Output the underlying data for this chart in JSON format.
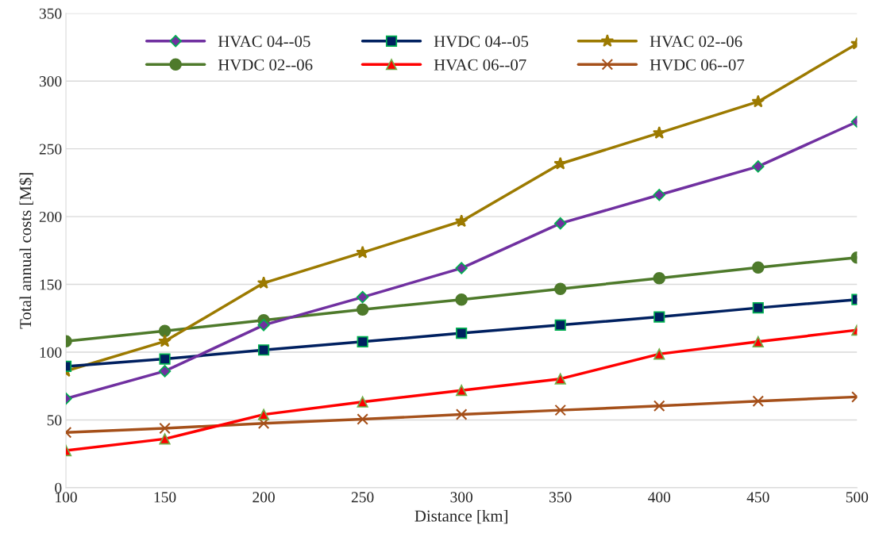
{
  "chart_data": {
    "type": "line",
    "xlabel": "Distance [km]",
    "ylabel": "Total annual costs [M$]",
    "x": [
      100,
      150,
      200,
      250,
      300,
      350,
      400,
      450,
      500
    ],
    "xlim": [
      100,
      500
    ],
    "xticks": [
      100,
      150,
      200,
      250,
      300,
      350,
      400,
      450,
      500
    ],
    "ylim": [
      0,
      350
    ],
    "yticks": [
      0,
      50,
      100,
      150,
      200,
      250,
      300,
      350
    ],
    "grid": "y",
    "legend": "top",
    "line_style": "solid",
    "series": [
      {
        "name": "HVAC 04--05",
        "color": "#7030a0",
        "marker": "diamond",
        "values": [
          65.7,
          86,
          120,
          140.6,
          162,
          195,
          216,
          237,
          270
        ]
      },
      {
        "name": "HVDC 04--05",
        "color": "#002060",
        "marker": "square",
        "values": [
          89.5,
          95,
          101.6,
          107.7,
          114,
          120,
          126,
          132.7,
          138.8
        ]
      },
      {
        "name": "HVAC 02--06",
        "color": "#9c7a00",
        "marker": "star",
        "values": [
          86,
          108,
          151,
          173.5,
          196.6,
          239,
          261.7,
          284.8,
          327.5
        ]
      },
      {
        "name": "HVDC 02--06",
        "color": "#4e7a2b",
        "marker": "circle",
        "values": [
          108,
          115.6,
          123.5,
          131.5,
          138.8,
          146.7,
          154.6,
          162.5,
          169.8
        ]
      },
      {
        "name": "HVAC 06--07",
        "color": "#ff0000",
        "marker": "triangle",
        "values": [
          27.4,
          36,
          54,
          63.3,
          71.8,
          80.3,
          98.6,
          107.7,
          116.3
        ]
      },
      {
        "name": "HVDC 06--07",
        "color": "#a5501a",
        "marker": "cross",
        "values": [
          40.8,
          43.8,
          47.5,
          50.5,
          54,
          57.2,
          60.3,
          63.9,
          67
        ]
      }
    ]
  }
}
